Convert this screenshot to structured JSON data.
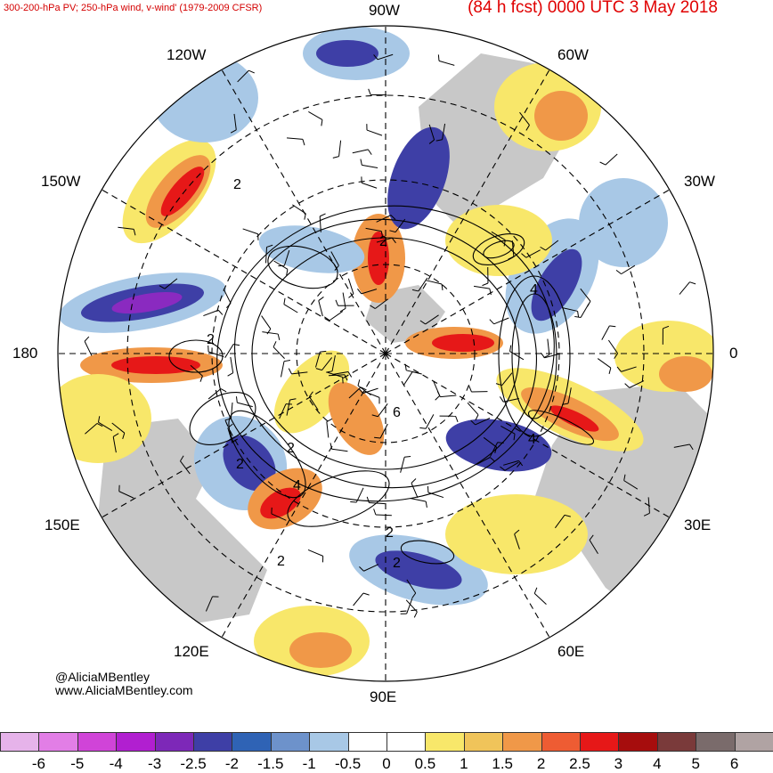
{
  "header": {
    "left": "300-200-hPa PV; 250-hPa wind, v-wind' (1979-2009 CFSR)",
    "right": "(84 h fcst) 0000 UTC 3 May 2018"
  },
  "longitude_labels": {
    "top": "90W",
    "bottom": "90E",
    "left": "180",
    "right": "0",
    "upper_left_outer": "120W",
    "upper_left_inner": "150W",
    "upper_right_outer": "60W",
    "upper_right_inner": "30W",
    "lower_left_outer": "150E",
    "lower_left_inner": "120E",
    "lower_right_outer": "30E",
    "lower_right_inner": "60E"
  },
  "pv_contour_labels": [
    "2",
    "2",
    "2",
    "4",
    "2",
    "6",
    "2",
    "4",
    "2",
    "4",
    "2",
    "2"
  ],
  "credits": {
    "handle": "@AliciaMBentley",
    "site": "www.AliciaMBentley.com"
  },
  "colorbar": {
    "colors": [
      "#e6b3ea",
      "#e27ee6",
      "#d044d8",
      "#b11fd0",
      "#7d28b8",
      "#3e3fa6",
      "#2f63b5",
      "#6d92cb",
      "#a8c8e6",
      "#ffffff",
      "#ffffff",
      "#f8e76a",
      "#f0c45a",
      "#f09848",
      "#ee5c33",
      "#e61818",
      "#a60d0d",
      "#7a3a3a",
      "#7a6b6b",
      "#b0a3a3"
    ],
    "ticks": [
      "-6",
      "-5",
      "-4",
      "-3",
      "-2.5",
      "-2",
      "-1.5",
      "-1",
      "-0.5",
      "0",
      "0.5",
      "1",
      "1.5",
      "2",
      "2.5",
      "3",
      "4",
      "5",
      "6"
    ]
  },
  "map_colors": {
    "land": "#c8c8c8",
    "positive_strong": "#e61818",
    "positive": "#f09848",
    "positive_weak": "#f8e76a",
    "negative_weak": "#a8c8e6",
    "negative": "#3e3fa6",
    "negative_strong": "#8a2ac0"
  }
}
